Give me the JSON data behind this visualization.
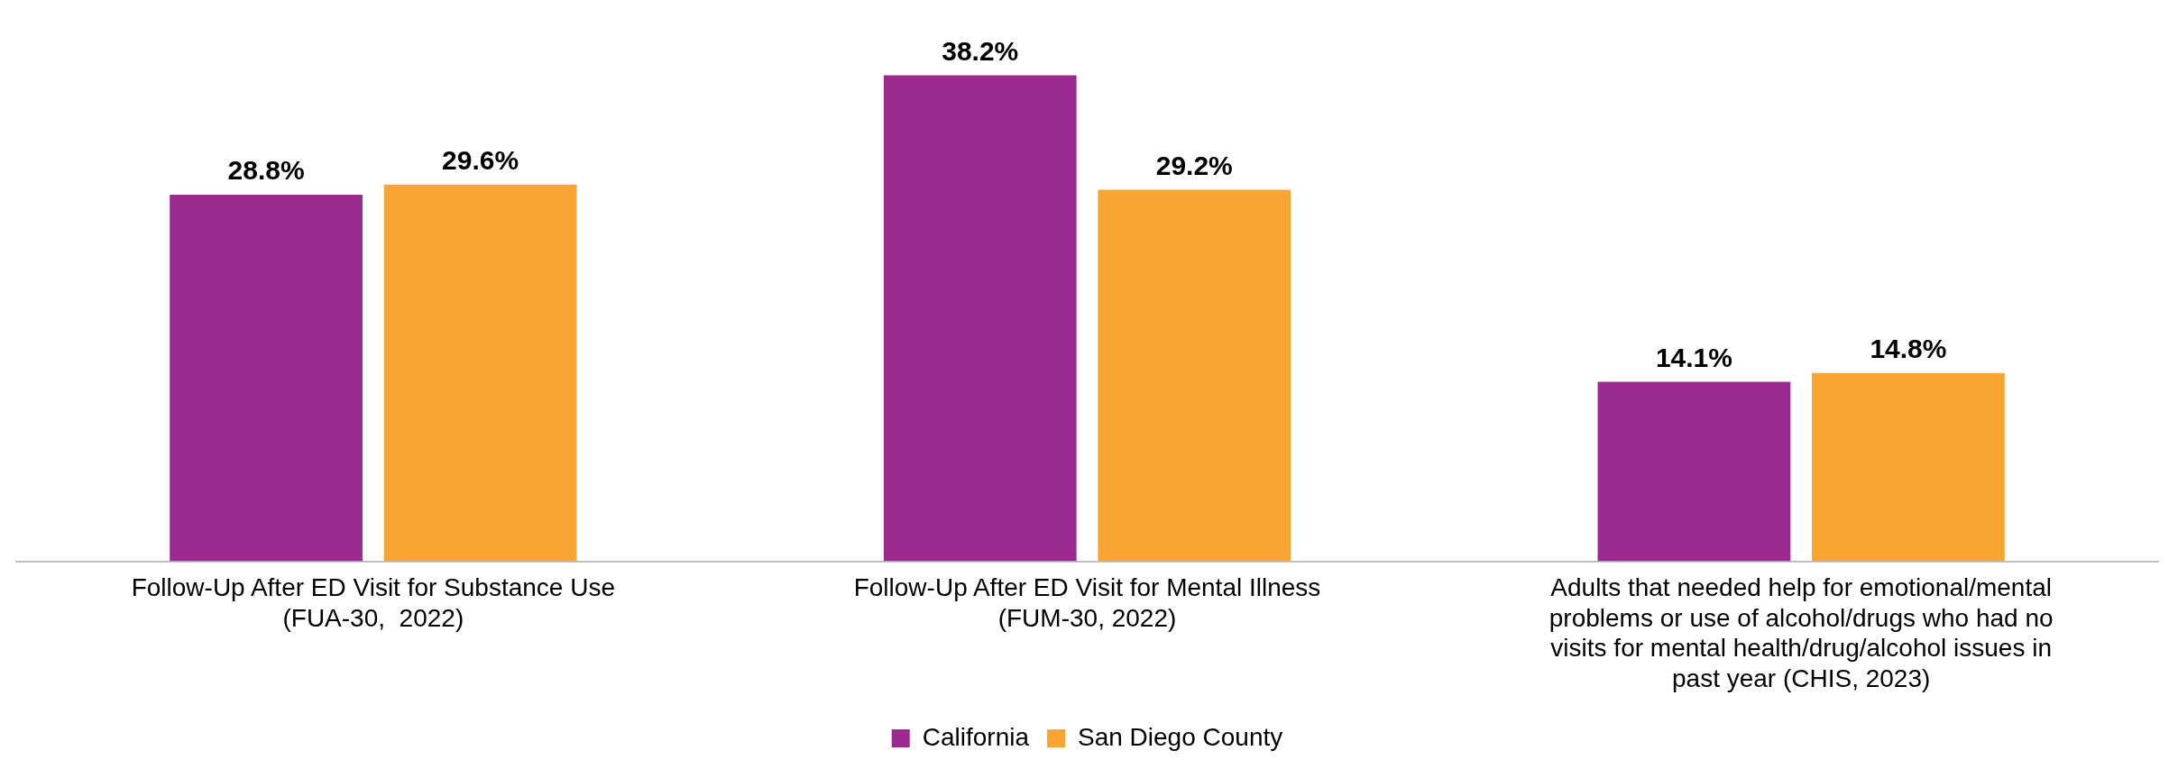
{
  "chart_data": {
    "type": "bar",
    "categories": [
      "Follow-Up After ED Visit for Substance Use (FUA-30,  2022)",
      "Follow-Up After ED Visit for Mental Illness (FUM-30, 2022)",
      "Adults that needed help for emotional/mental problems or use of alcohol/drugs who had no visits for mental health/drug/alcohol issues in past year (CHIS, 2023)"
    ],
    "series": [
      {
        "name": "California",
        "color": "#9b2a8f",
        "values": [
          28.8,
          38.2,
          14.1
        ],
        "value_labels": [
          "28.8%",
          "38.2%",
          "14.1%"
        ]
      },
      {
        "name": "San Diego County",
        "color": "#f7a533",
        "values": [
          29.6,
          29.2,
          14.8
        ],
        "value_labels": [
          "29.6%",
          "29.2%",
          "14.8%"
        ]
      }
    ],
    "legend": "bottom",
    "grid": false
  }
}
